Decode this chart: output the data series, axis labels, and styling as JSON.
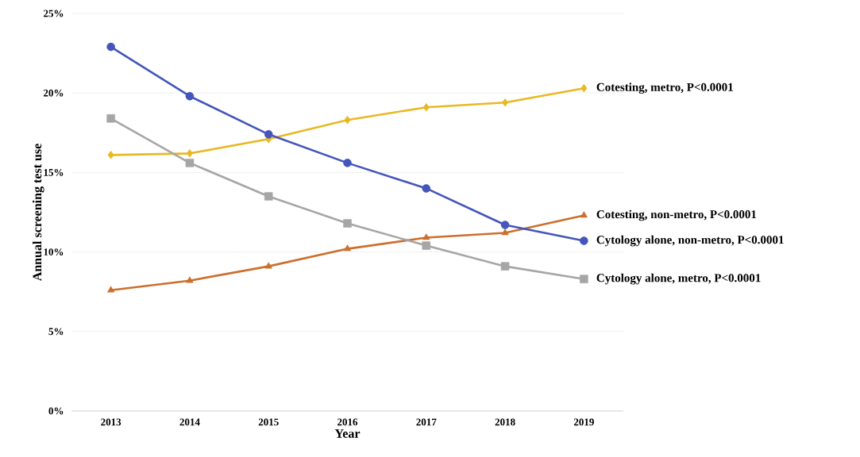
{
  "chart_data": {
    "type": "line",
    "xlabel": "Year",
    "ylabel": "Annual screening test use",
    "categories": [
      "2013",
      "2014",
      "2015",
      "2016",
      "2017",
      "2018",
      "2019"
    ],
    "series": [
      {
        "name": "Cotesting, metro, P<0.0001",
        "color": "#e8b923",
        "marker": "diamond",
        "values": [
          16.1,
          16.2,
          17.1,
          18.3,
          19.1,
          19.4,
          20.3
        ]
      },
      {
        "name": "Cotesting, non-metro, P<0.0001",
        "color": "#cc6f2c",
        "marker": "triangle",
        "values": [
          7.6,
          8.2,
          9.1,
          10.2,
          10.9,
          11.2,
          12.3
        ]
      },
      {
        "name": "Cytology alone, non-metro, P<0.0001",
        "color": "#4455bb",
        "marker": "circle",
        "values": [
          22.9,
          19.8,
          17.4,
          15.6,
          14.0,
          11.7,
          10.7
        ]
      },
      {
        "name": "Cytology alone, metro, P<0.0001",
        "color": "#a6a6a6",
        "marker": "square",
        "values": [
          18.4,
          15.6,
          13.5,
          11.8,
          10.4,
          9.1,
          8.3
        ]
      }
    ],
    "ylim": [
      0,
      25
    ],
    "yticks": [
      {
        "value": 0,
        "label": "0%"
      },
      {
        "value": 5,
        "label": "5%"
      },
      {
        "value": 10,
        "label": "10%"
      },
      {
        "value": 15,
        "label": "15%"
      },
      {
        "value": 20,
        "label": "20%"
      },
      {
        "value": 25,
        "label": "25%"
      }
    ],
    "grid": "y",
    "line_style": "solid"
  }
}
